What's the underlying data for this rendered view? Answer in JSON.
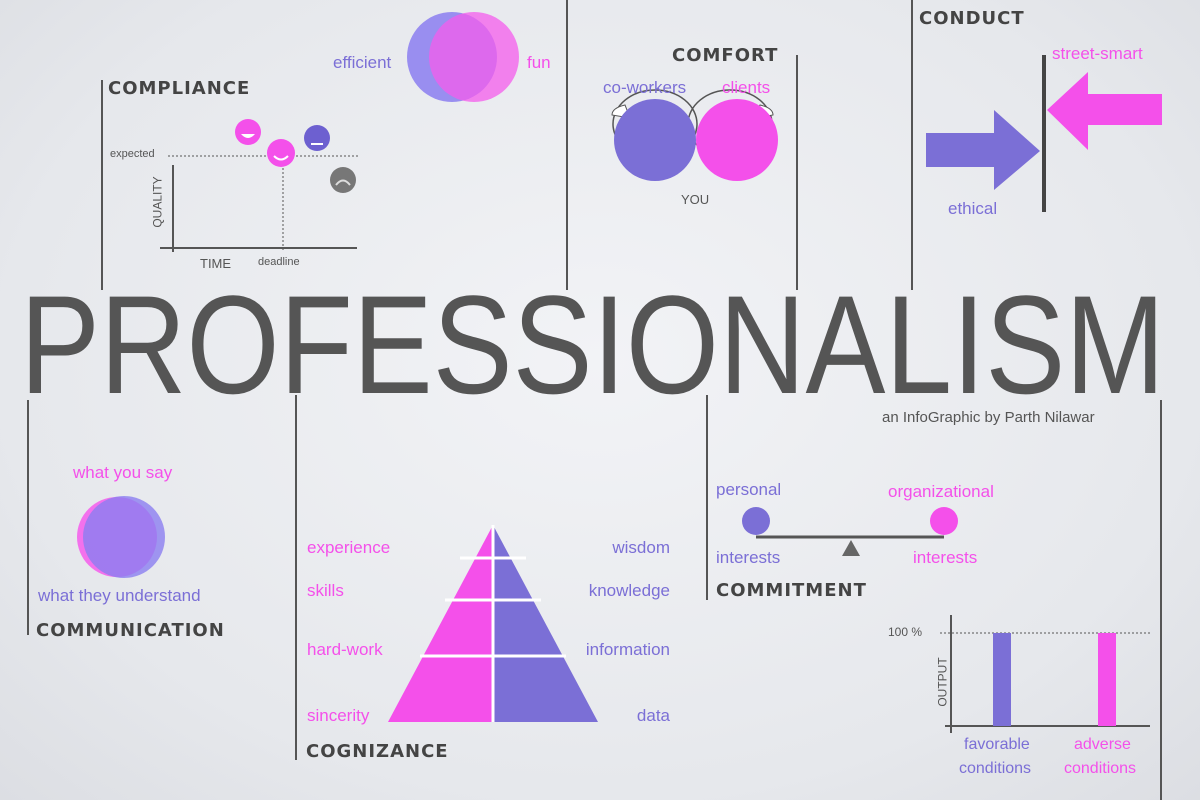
{
  "title": "PROFESSIONALISM",
  "byline": "an InfoGraphic by Parth Nilawar",
  "colors": {
    "purple": "#7b6fd6",
    "pink": "#f450ea",
    "gray": "#555555",
    "background": "#e8eaee"
  },
  "venn_top": {
    "left": "efficient",
    "right": "fun"
  },
  "compliance": {
    "heading": "COMPLIANCE",
    "y_axis": "QUALITY",
    "x_axis": "TIME",
    "y_marker": "expected",
    "x_marker": "deadline"
  },
  "comfort": {
    "heading": "COMFORT",
    "left": "co-workers",
    "right": "clients",
    "center": "YOU"
  },
  "conduct": {
    "heading": "CONDUCT",
    "right": "street-smart",
    "left": "ethical"
  },
  "communication": {
    "heading": "COMMUNICATION",
    "top": "what you say",
    "bottom": "what they understand"
  },
  "cognizance": {
    "heading": "COGNIZANCE",
    "left": [
      "experience",
      "skills",
      "hard-work",
      "sincerity"
    ],
    "right": [
      "wisdom",
      "knowledge",
      "information",
      "data"
    ]
  },
  "commitment": {
    "heading": "COMMITMENT",
    "left_top": "personal",
    "left_bottom": "interests",
    "right_top": "organizational",
    "right_bottom": "interests"
  },
  "consistency": {
    "y_tick": "100 %",
    "y_axis": "OUTPUT",
    "bars": [
      {
        "label_1": "favorable",
        "label_2": "conditions",
        "value": 100,
        "color": "#7b6fd6"
      },
      {
        "label_1": "adverse",
        "label_2": "conditions",
        "value": 100,
        "color": "#f450ea"
      }
    ]
  }
}
